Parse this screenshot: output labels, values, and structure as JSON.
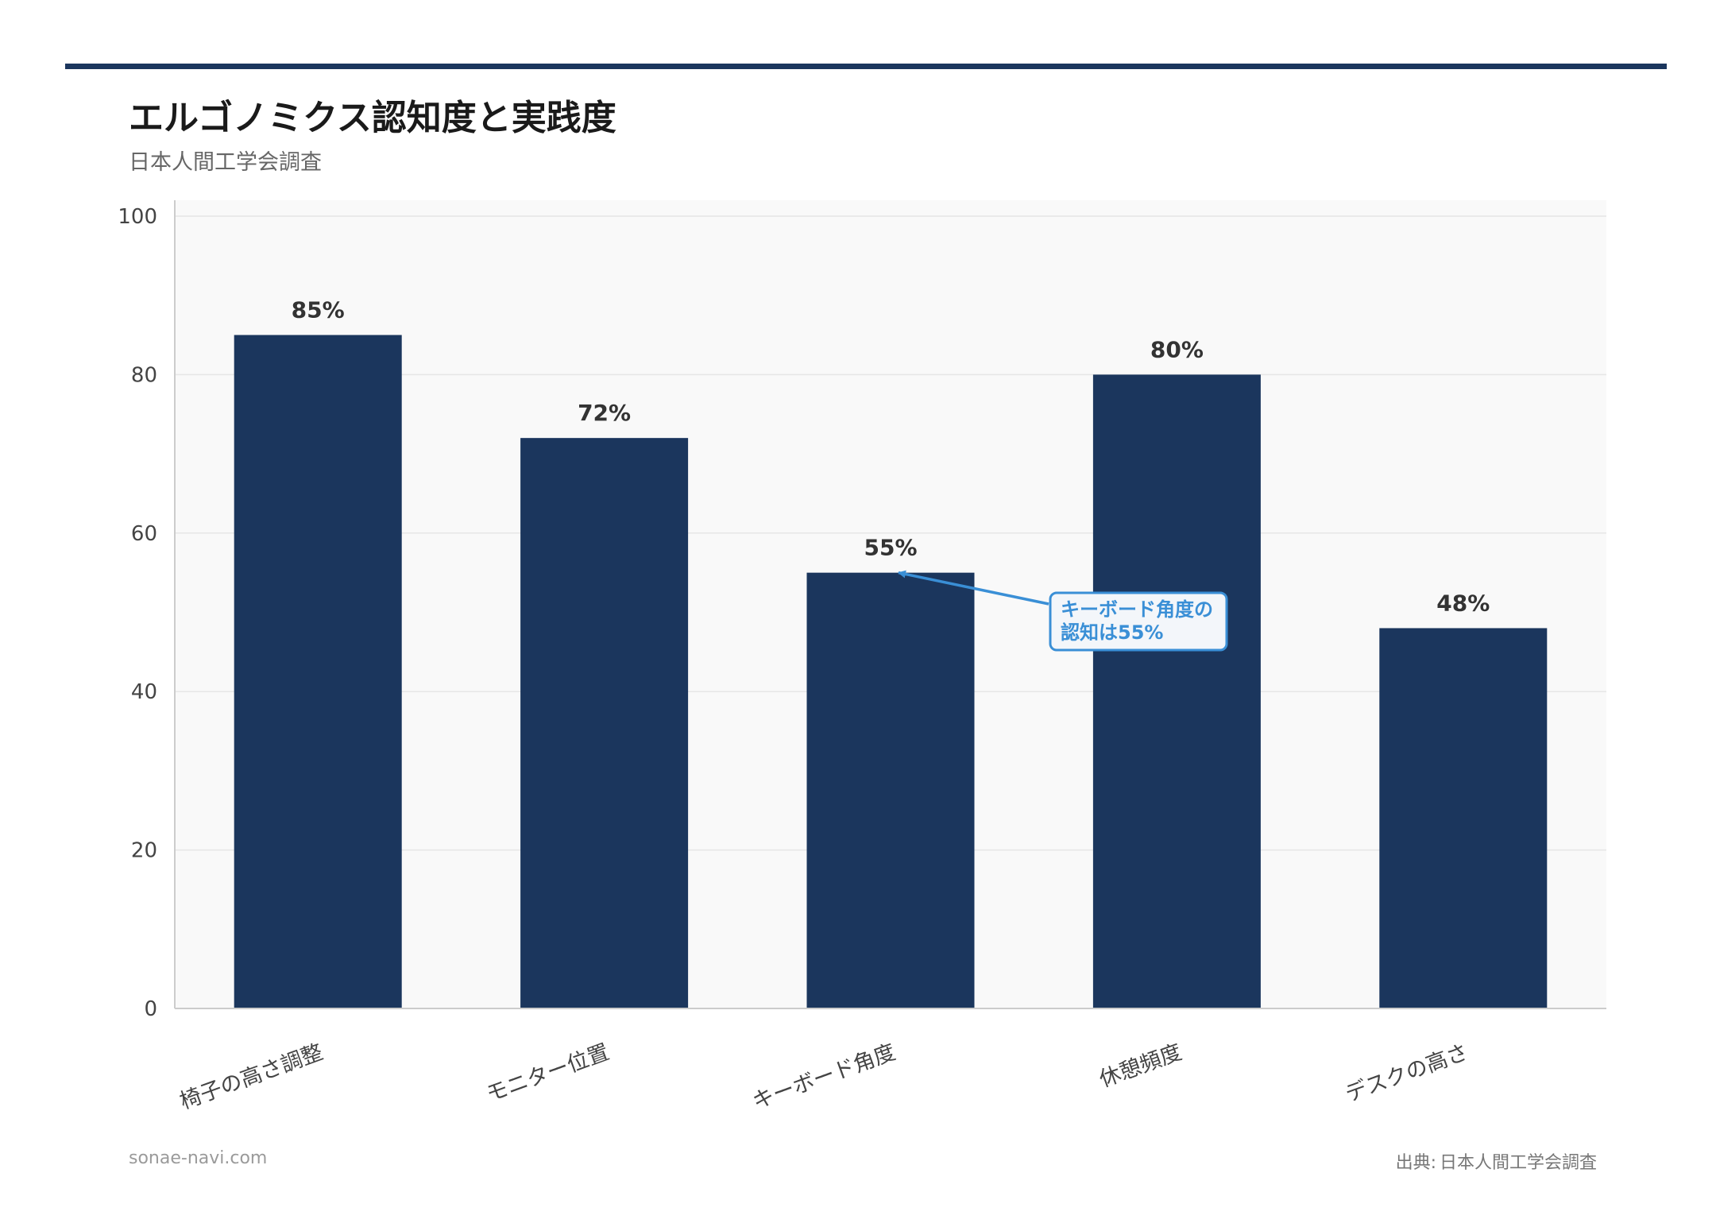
{
  "header": {
    "title": "エルゴノミクス認知度と実践度",
    "subtitle": "日本人間工学会調査"
  },
  "footer": {
    "site": "sonae-navi.com",
    "source_prefix": "出典:",
    "source": "日本人間工学会調査"
  },
  "colors": {
    "bar": "#1b365d",
    "accent": "#3a8fd6",
    "plot_bg": "#f9f9f9",
    "grid": "#e6e6e6",
    "rule": "#1b365d"
  },
  "chart_data": {
    "type": "bar",
    "title": "エルゴノミクス認知度と実践度",
    "subtitle": "日本人間工学会調査",
    "categories": [
      "椅子の高さ調整",
      "モニター位置",
      "キーボード角度",
      "休憩頻度",
      "デスクの高さ"
    ],
    "values": [
      85,
      72,
      55,
      80,
      48
    ],
    "data_labels": [
      "85%",
      "72%",
      "55%",
      "80%",
      "48%"
    ],
    "ylim": [
      0,
      100
    ],
    "yticks": [
      0,
      20,
      40,
      60,
      80,
      100
    ],
    "grid": true,
    "legend": "none",
    "annotation": {
      "lines": [
        "キーボード角度の",
        "認知は55%"
      ],
      "target_category": "キーボード角度",
      "target_value": 55
    }
  }
}
